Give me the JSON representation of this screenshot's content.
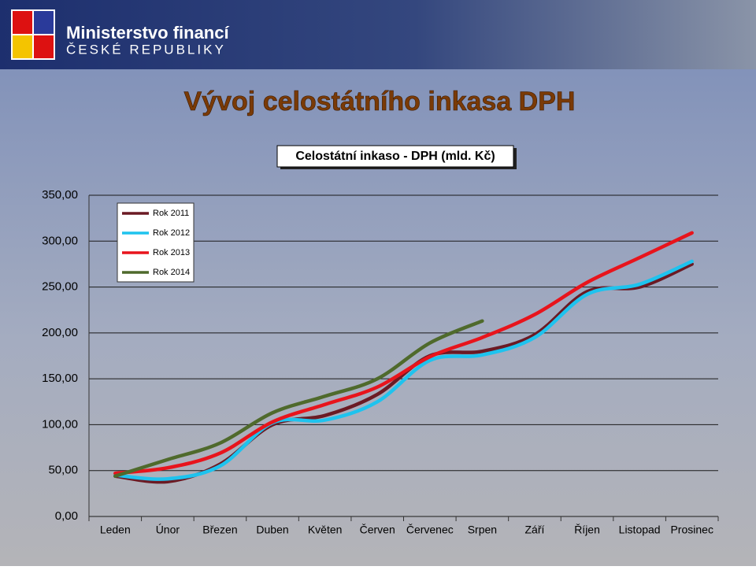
{
  "header": {
    "ministry": "Ministerstvo financí",
    "country": "ČESKÉ REPUBLIKY"
  },
  "slide_title": "Vývoj celostátního inkasa DPH",
  "chart_data": {
    "type": "line",
    "title": "Celostátní inkaso - DPH (mld. Kč)",
    "categories": [
      "Leden",
      "Únor",
      "Březen",
      "Duben",
      "Květen",
      "Červen",
      "Červenec",
      "Srpen",
      "Září",
      "Říjen",
      "Listopad",
      "Prosinec"
    ],
    "series": [
      {
        "name": "Rok 2011",
        "color": "#6b1a24",
        "values": [
          44,
          38,
          57,
          100,
          110,
          133,
          175,
          180,
          198,
          245,
          250,
          275
        ]
      },
      {
        "name": "Rok 2012",
        "color": "#1ec3ee",
        "values": [
          45,
          41,
          55,
          102,
          105,
          125,
          170,
          176,
          195,
          242,
          253,
          278
        ]
      },
      {
        "name": "Rok 2013",
        "color": "#e8141c",
        "values": [
          47,
          53,
          69,
          103,
          122,
          141,
          174,
          195,
          220,
          255,
          282,
          309
        ]
      },
      {
        "name": "Rok 2014",
        "color": "#4f6a2c",
        "values": [
          44,
          62,
          80,
          113,
          131,
          150,
          189,
          213,
          null,
          null,
          null,
          null
        ]
      }
    ],
    "ylim": [
      0,
      350
    ],
    "yticks": [
      {
        "value": 0,
        "label": "0,00"
      },
      {
        "value": 50,
        "label": "50,00"
      },
      {
        "value": 100,
        "label": "100,00"
      },
      {
        "value": 150,
        "label": "150,00"
      },
      {
        "value": 200,
        "label": "200,00"
      },
      {
        "value": 250,
        "label": "250,00"
      },
      {
        "value": 300,
        "label": "300,00"
      },
      {
        "value": 350,
        "label": "350,00"
      }
    ],
    "grid": true,
    "legend": "upper left"
  }
}
